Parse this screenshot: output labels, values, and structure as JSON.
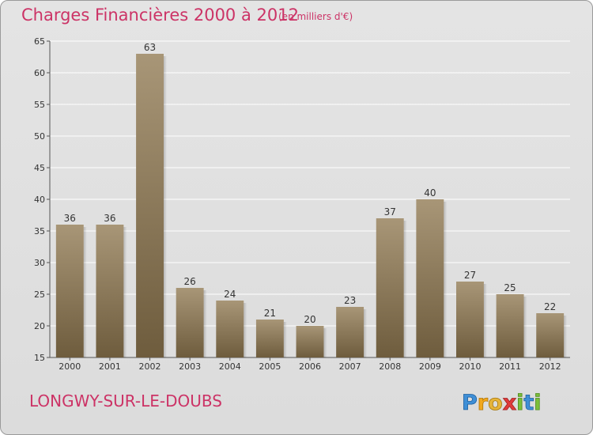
{
  "chart_data": {
    "type": "bar",
    "title": "Charges Financières 2000 à 2012",
    "subtitle": "(en milliers d'€)",
    "categories": [
      "2000",
      "2001",
      "2002",
      "2003",
      "2004",
      "2005",
      "2006",
      "2007",
      "2008",
      "2009",
      "2010",
      "2011",
      "2012"
    ],
    "values": [
      36,
      36,
      63,
      26,
      24,
      21,
      20,
      23,
      37,
      40,
      27,
      25,
      22
    ],
    "ylim": [
      15,
      65
    ],
    "yticks": [
      15,
      20,
      25,
      30,
      35,
      40,
      45,
      50,
      55,
      60,
      65
    ],
    "grid": true,
    "xlabel": "",
    "ylabel": ""
  },
  "footer": {
    "commune": "LONGWY-SUR-LE-DOUBS",
    "logo_text": "Proxiti"
  },
  "colors": {
    "title": "#cc3366",
    "bar_light": "#a89677",
    "bar_dark": "#6e5c3d",
    "grid": "#ffffff"
  }
}
